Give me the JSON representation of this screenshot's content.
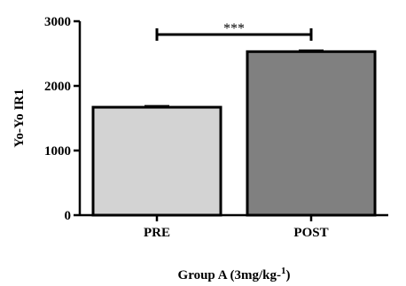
{
  "chart_data": {
    "type": "bar",
    "categories": [
      "PRE",
      "POST"
    ],
    "values": [
      1670,
      2530
    ],
    "errors": [
      20,
      20
    ],
    "colors": [
      "#d3d3d3",
      "#808080"
    ],
    "ylabel": "Yo-Yo IR1",
    "xlabel": {
      "main": "Group A (3mg/kg-",
      "superscript": "1",
      "close": ")"
    },
    "ylim": [
      0,
      3000
    ],
    "yticks": [
      "0",
      "1000",
      "2000",
      "3000"
    ],
    "significance": {
      "label": "***",
      "from": "PRE",
      "to": "POST"
    },
    "grid": false,
    "legend": "none"
  }
}
